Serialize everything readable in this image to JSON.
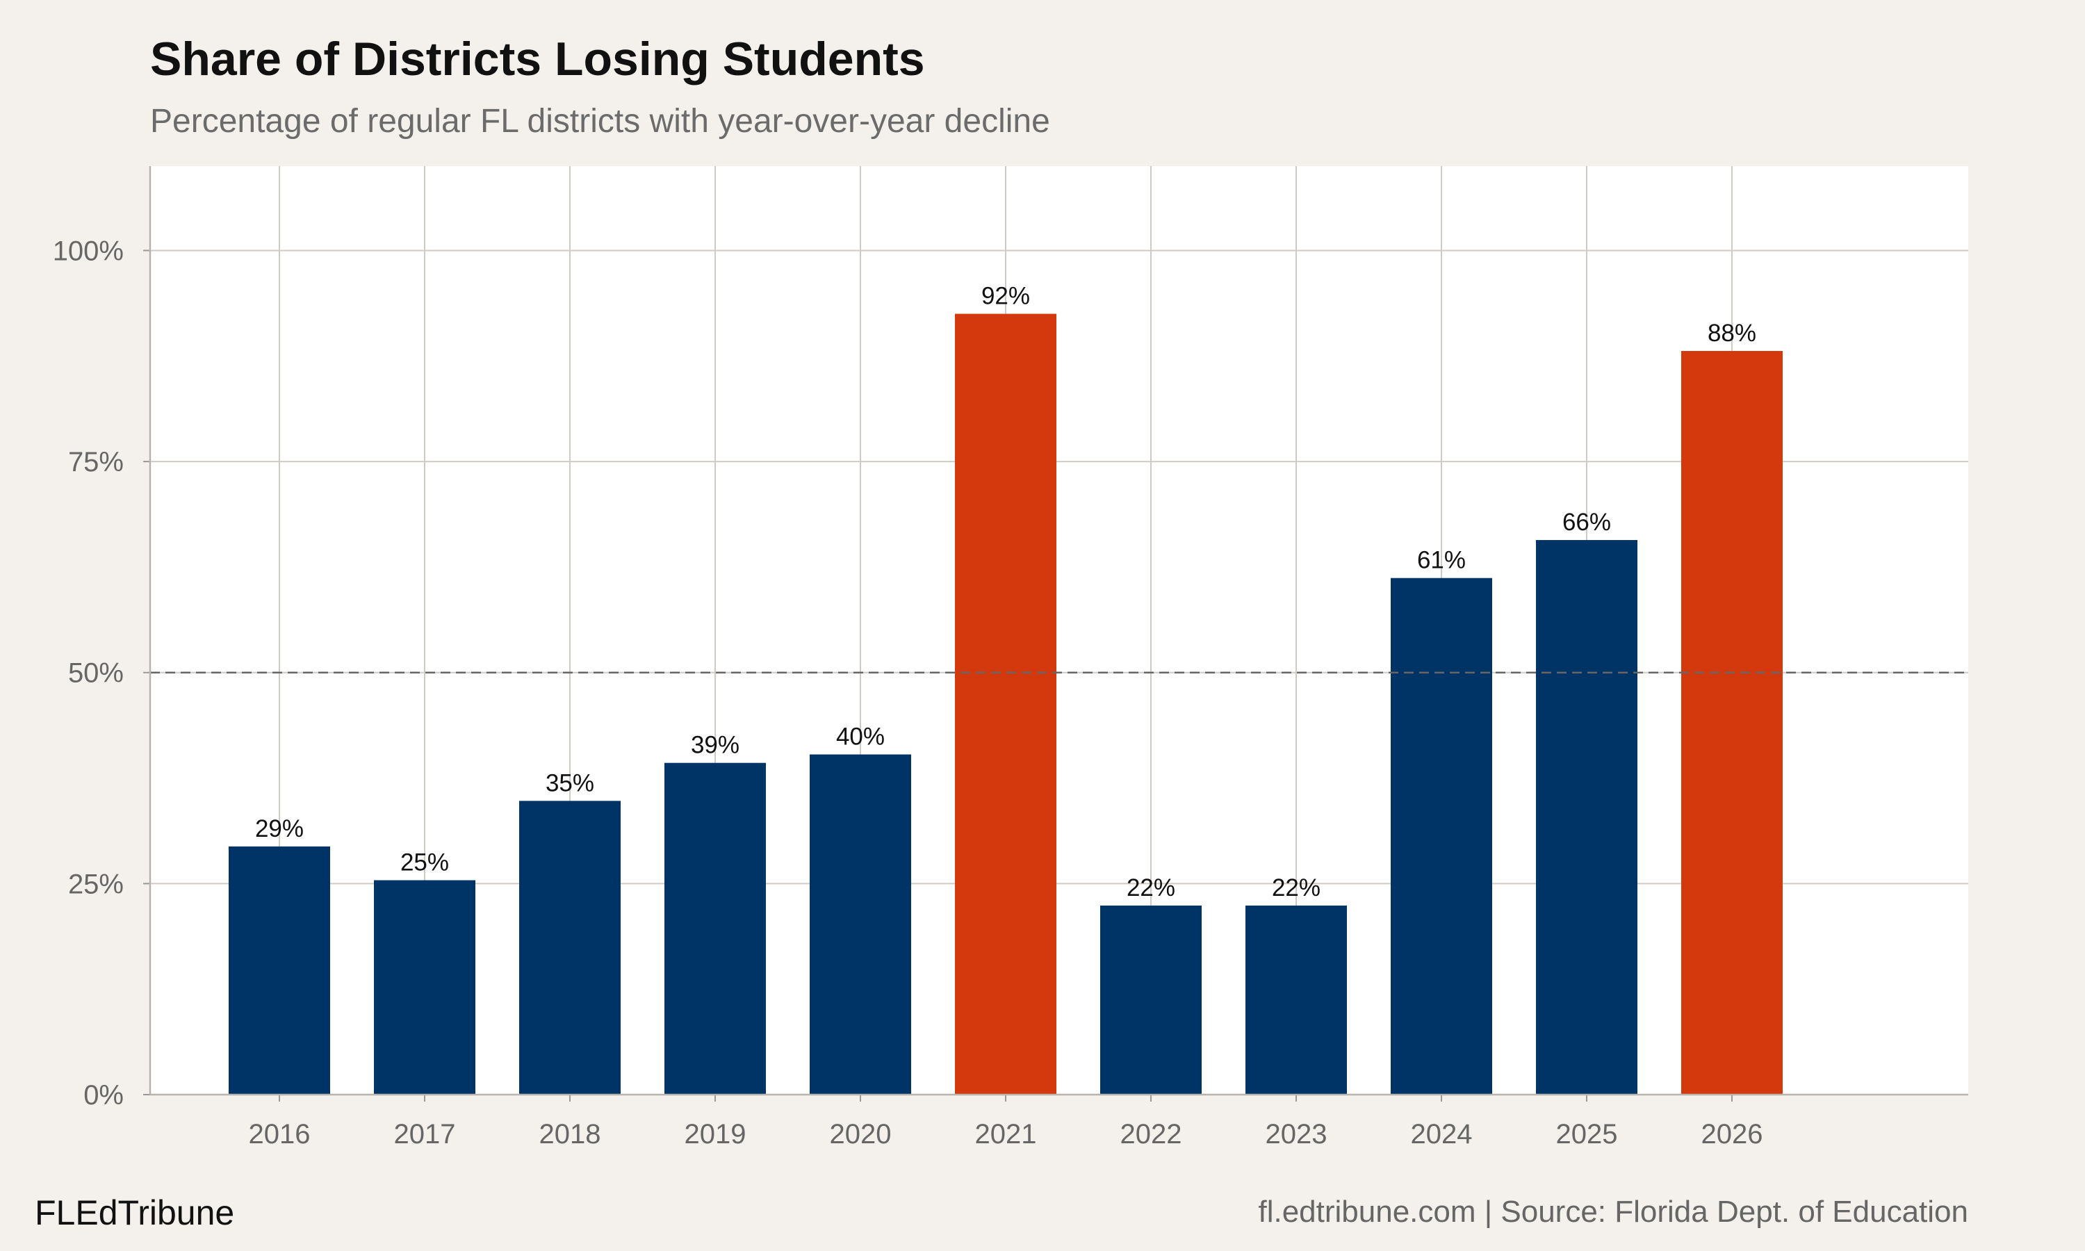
{
  "chart_data": {
    "type": "bar",
    "title": "Share of Districts Losing Students",
    "subtitle": "Percentage of regular FL districts with year-over-year decline",
    "xlabel": "",
    "ylabel": "",
    "categories": [
      "2016",
      "2017",
      "2018",
      "2019",
      "2020",
      "2021",
      "2022",
      "2023",
      "2024",
      "2025",
      "2026"
    ],
    "values": [
      29.4,
      25.4,
      34.8,
      39.3,
      40.3,
      92.5,
      22.4,
      22.4,
      61.2,
      65.7,
      88.1
    ],
    "data_labels": [
      "29%",
      "25%",
      "35%",
      "39%",
      "40%",
      "92%",
      "22%",
      "22%",
      "61%",
      "66%",
      "88%"
    ],
    "highlight": [
      false,
      false,
      false,
      false,
      false,
      true,
      false,
      false,
      false,
      false,
      true
    ],
    "ylim": [
      0,
      110
    ],
    "yticks": [
      0,
      25,
      50,
      75,
      100
    ],
    "ytick_labels": [
      "0%",
      "25%",
      "50%",
      "75%",
      "100%"
    ],
    "reference_line": {
      "value": 50,
      "style": "dashed"
    },
    "grid": true,
    "colors": {
      "default": "#003366",
      "highlight": "#d4380d",
      "background": "#f4f1ec",
      "panel": "#ffffff",
      "grid": "#cfcbc4"
    }
  },
  "footer": {
    "brand": "FLEdTribune",
    "source": "fl.edtribune.com | Source: Florida Dept. of Education"
  }
}
